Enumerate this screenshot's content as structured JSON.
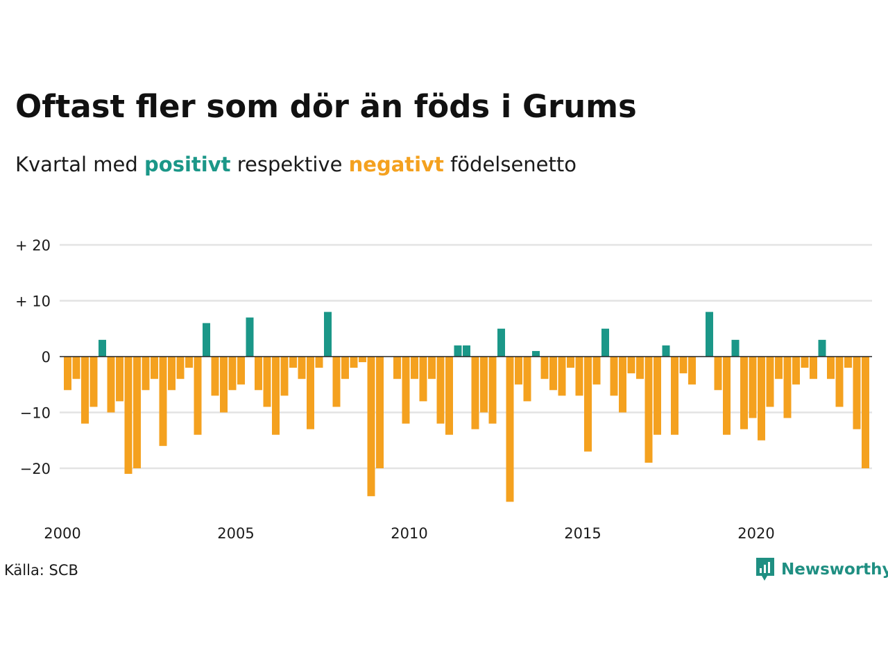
{
  "title": "Oftast fler som dör än föds i Grums",
  "subtitle": {
    "prefix": "Kvartal med",
    "positive_word": "positivt",
    "middle": "respektive",
    "negative_word": "negativt",
    "suffix": "födelsenetto"
  },
  "source": "Källa: SCB",
  "brand": {
    "name": "Newsworthy",
    "logo_icon": "newsworthy-logo-icon"
  },
  "colors": {
    "positive": "#1b9788",
    "negative": "#f4a11f",
    "grid": "#e3e3e3",
    "zero_line": "#222222"
  },
  "chart_data": {
    "type": "bar",
    "x_axis": {
      "start": 2000,
      "step": 0.25,
      "ticks": [
        2000,
        2005,
        2010,
        2015,
        2020
      ]
    },
    "y_axis": {
      "range": [
        -28,
        20
      ],
      "ticks": [
        {
          "value": 20,
          "label": "+ 20"
        },
        {
          "value": 10,
          "label": "+ 10"
        },
        {
          "value": 0,
          "label": "0"
        },
        {
          "value": -10,
          "label": "−10"
        },
        {
          "value": -20,
          "label": "−20"
        }
      ]
    },
    "grid": true,
    "legend": "none",
    "values": [
      -6,
      -4,
      -12,
      -9,
      3,
      -10,
      -8,
      -21,
      -20,
      -6,
      -4,
      -16,
      -6,
      -4,
      -2,
      -14,
      6,
      -7,
      -10,
      -6,
      -5,
      7,
      -6,
      -9,
      -14,
      -7,
      -2,
      -4,
      -13,
      -2,
      8,
      -9,
      -4,
      -2,
      -1,
      -25,
      -20,
      0,
      -4,
      -12,
      -4,
      -8,
      -4,
      -12,
      -14,
      2,
      2,
      -13,
      -10,
      -12,
      5,
      -26,
      -5,
      -8,
      1,
      -4,
      -6,
      -7,
      -2,
      -7,
      -17,
      -5,
      5,
      -7,
      -10,
      -3,
      -4,
      -19,
      -14,
      2,
      -14,
      -3,
      -5,
      0,
      8,
      -6,
      -14,
      3,
      -13,
      -11,
      -15,
      -9,
      -4,
      -11,
      -5,
      -2,
      -4,
      3,
      -4,
      -9,
      -2,
      -13,
      -20
    ]
  }
}
